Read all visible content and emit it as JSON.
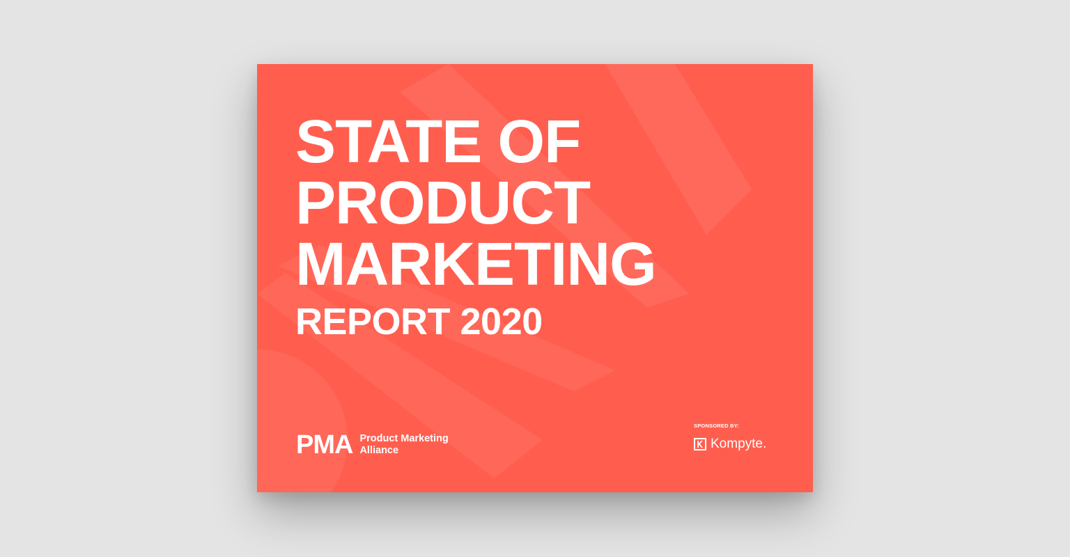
{
  "cover": {
    "title_lines": [
      "STATE OF",
      "PRODUCT",
      "MARKETING"
    ],
    "subtitle": "REPORT 2020",
    "colors": {
      "background": "#e4e4e4",
      "card": "#ff5e4f",
      "text": "#ffffff"
    }
  },
  "publisher": {
    "logo_mark": "PMA",
    "name_line1": "Product Marketing",
    "name_line2": "Alliance"
  },
  "sponsor": {
    "label": "SPONSORED BY:",
    "name": "Kompyte."
  }
}
